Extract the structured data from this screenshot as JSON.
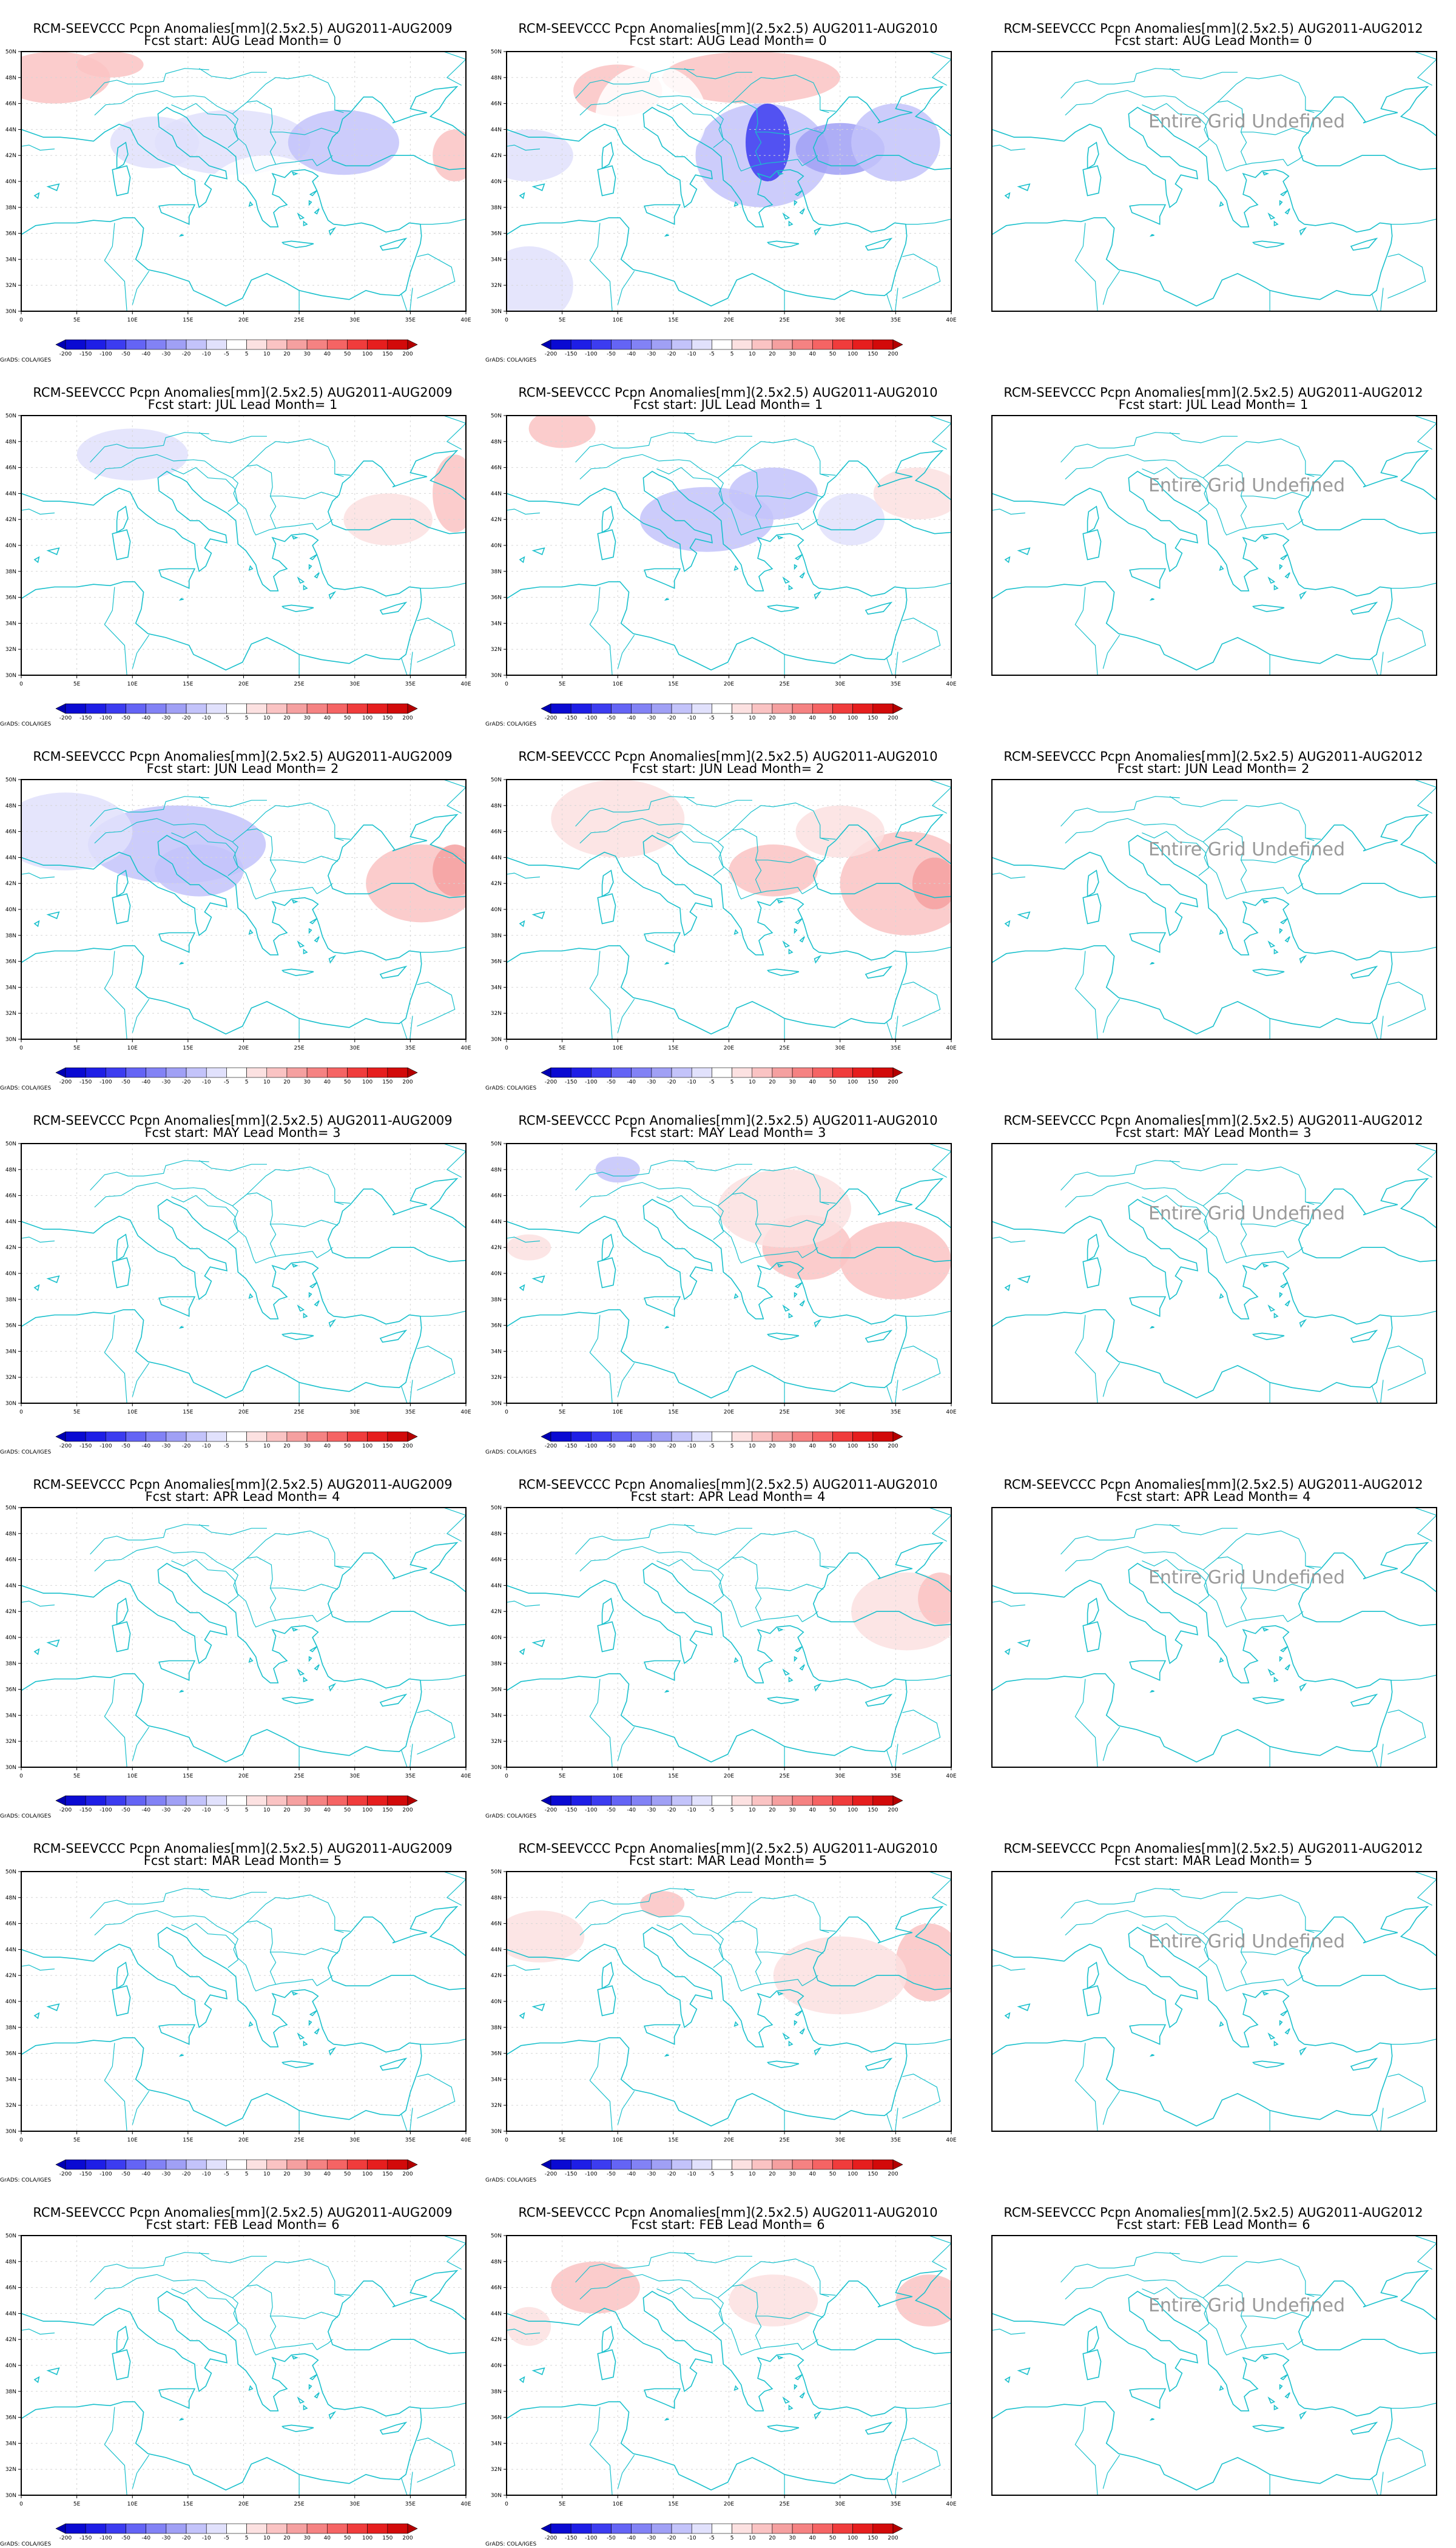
{
  "credit": "GrADS: COLA/IGES",
  "undefined_label": "Entire Grid Undefined",
  "colors": {
    "coast": "#19c0cc",
    "grid": "#d6d6d6",
    "frame": "#000000"
  },
  "axes": {
    "x_ticks": [
      "0",
      "5E",
      "10E",
      "15E",
      "20E",
      "25E",
      "30E",
      "35E",
      "40E"
    ],
    "y_ticks": [
      "30N",
      "32N",
      "34N",
      "36N",
      "38N",
      "40N",
      "42N",
      "44N",
      "46N",
      "48N",
      "50N"
    ],
    "lon_range": [
      0,
      40
    ],
    "lat_range": [
      30,
      50
    ],
    "grid": true
  },
  "colorbar": {
    "labels": [
      "-200",
      "-150",
      "-100",
      "-50",
      "-40",
      "-30",
      "-20",
      "-10",
      "-5",
      "5",
      "10",
      "20",
      "30",
      "40",
      "50",
      "100",
      "150",
      "200"
    ],
    "colors": [
      "#0000b4",
      "#0a0ad2",
      "#1e1ee6",
      "#3c3cf0",
      "#6464f5",
      "#8282f5",
      "#a0a0f5",
      "#c3c3fa",
      "#e1e1fc",
      "#ffffff",
      "#fce1e1",
      "#fac3c3",
      "#f5a0a0",
      "#f58282",
      "#f56464",
      "#f03c3c",
      "#e61e1e",
      "#d20a0a",
      "#b40000"
    ]
  },
  "rows": [
    {
      "lead": "0",
      "panels": [
        {
          "title": "RCM-SEEVCCC Pcpn Anomalies[mm](2.5x2.5) AUG2011-AUG2009",
          "subtitle": "Fcst start: AUG  Lead Month= 0",
          "undefined": false,
          "blobs": [
            [
              3,
              48,
              5,
              2,
              15
            ],
            [
              8,
              49,
              3,
              1,
              10
            ],
            [
              19,
              43,
              7,
              2.5,
              -10
            ],
            [
              29,
              43,
              5,
              2.5,
              -15
            ],
            [
              12,
              43,
              4,
              2,
              -10
            ],
            [
              39,
              42,
              2,
              2,
              10
            ],
            [
              22,
              38,
              6,
              4,
              -4
            ]
          ]
        },
        {
          "title": "RCM-SEEVCCC Pcpn Anomalies[mm](2.5x2.5) AUG2011-AUG2010",
          "subtitle": "Fcst start: AUG  Lead Month= 0",
          "undefined": false,
          "blobs": [
            [
              23,
              42,
              6,
              4,
              -20
            ],
            [
              23.5,
              43,
              2,
              3,
              -60
            ],
            [
              30,
              42.5,
              4,
              2,
              -30
            ],
            [
              35,
              43,
              4,
              3,
              -20
            ],
            [
              10,
              47,
              4,
              2,
              10
            ],
            [
              2,
              42,
              4,
              2,
              -10
            ],
            [
              22,
              48,
              8,
              2,
              15
            ],
            [
              2,
              32,
              4,
              3,
              -10
            ],
            [
              13,
              45,
              5,
              4,
              -5
            ]
          ]
        },
        {
          "title": "RCM-SEEVCCC Pcpn Anomalies[mm](2.5x2.5) AUG2011-AUG2012",
          "subtitle": "Fcst start: AUG  Lead Month= 0",
          "undefined": true,
          "blobs": []
        }
      ]
    },
    {
      "lead": "1",
      "panels": [
        {
          "title": "RCM-SEEVCCC Pcpn Anomalies[mm](2.5x2.5) AUG2011-AUG2009",
          "subtitle": "Fcst start: JUL  Lead Month= 1",
          "undefined": false,
          "blobs": [
            [
              10,
              47,
              5,
              2,
              -8
            ],
            [
              18,
              42,
              5,
              3,
              -5
            ],
            [
              33,
              42,
              4,
              2,
              8
            ],
            [
              39,
              44,
              2,
              3,
              10
            ],
            [
              1,
              49,
              3,
              1,
              -5
            ]
          ]
        },
        {
          "title": "RCM-SEEVCCC Pcpn Anomalies[mm](2.5x2.5) AUG2011-AUG2010",
          "subtitle": "Fcst start: JUL  Lead Month= 1",
          "undefined": false,
          "blobs": [
            [
              18,
              42,
              6,
              2.5,
              -12
            ],
            [
              24,
              44,
              4,
              2,
              -15
            ],
            [
              31,
              42,
              3,
              2,
              -10
            ],
            [
              5,
              49,
              3,
              1.5,
              10
            ],
            [
              37,
              44,
              4,
              2,
              8
            ],
            [
              12,
              36,
              5,
              3,
              -5
            ]
          ]
        },
        {
          "title": "RCM-SEEVCCC Pcpn Anomalies[mm](2.5x2.5) AUG2011-AUG2012",
          "subtitle": "Fcst start: JUL  Lead Month= 1",
          "undefined": true,
          "blobs": []
        }
      ]
    },
    {
      "lead": "2",
      "panels": [
        {
          "title": "RCM-SEEVCCC Pcpn Anomalies[mm](2.5x2.5) AUG2011-AUG2009",
          "subtitle": "Fcst start: JUN  Lead Month= 2",
          "undefined": false,
          "blobs": [
            [
              14,
              45,
              8,
              3,
              -15
            ],
            [
              16,
              43,
              4,
              2,
              -20
            ],
            [
              4,
              46,
              6,
              3,
              -8
            ],
            [
              36,
              42,
              5,
              3,
              15
            ],
            [
              39,
              43,
              2,
              2,
              25
            ]
          ]
        },
        {
          "title": "RCM-SEEVCCC Pcpn Anomalies[mm](2.5x2.5) AUG2011-AUG2010",
          "subtitle": "Fcst start: JUN  Lead Month= 2",
          "undefined": false,
          "blobs": [
            [
              36,
              42,
              6,
              4,
              15
            ],
            [
              38.5,
              42,
              2,
              2,
              25
            ],
            [
              24,
              43,
              4,
              2,
              12
            ],
            [
              10,
              47,
              6,
              3,
              8
            ],
            [
              30,
              46,
              4,
              2,
              5
            ]
          ]
        },
        {
          "title": "RCM-SEEVCCC Pcpn Anomalies[mm](2.5x2.5) AUG2011-AUG2012",
          "subtitle": "Fcst start: JUN  Lead Month= 2",
          "undefined": true,
          "blobs": []
        }
      ]
    },
    {
      "lead": "3",
      "panels": [
        {
          "title": "RCM-SEEVCCC Pcpn Anomalies[mm](2.5x2.5) AUG2011-AUG2009",
          "subtitle": "Fcst start: MAY  Lead Month= 3",
          "undefined": false,
          "blobs": []
        },
        {
          "title": "RCM-SEEVCCC Pcpn Anomalies[mm](2.5x2.5) AUG2011-AUG2010",
          "subtitle": "Fcst start: MAY  Lead Month= 3",
          "undefined": false,
          "blobs": [
            [
              27,
              42,
              4,
              2.5,
              10
            ],
            [
              35,
              41,
              5,
              3,
              12
            ],
            [
              10,
              48,
              2,
              1,
              -15
            ],
            [
              25,
              45,
              6,
              3,
              5
            ],
            [
              2,
              42,
              2,
              1,
              8
            ]
          ]
        },
        {
          "title": "RCM-SEEVCCC Pcpn Anomalies[mm](2.5x2.5) AUG2011-AUG2012",
          "subtitle": "Fcst start: MAY  Lead Month= 3",
          "undefined": true,
          "blobs": []
        }
      ]
    },
    {
      "lead": "4",
      "panels": [
        {
          "title": "RCM-SEEVCCC Pcpn Anomalies[mm](2.5x2.5) AUG2011-AUG2009",
          "subtitle": "Fcst start: APR  Lead Month= 4",
          "undefined": false,
          "blobs": []
        },
        {
          "title": "RCM-SEEVCCC Pcpn Anomalies[mm](2.5x2.5) AUG2011-AUG2010",
          "subtitle": "Fcst start: APR  Lead Month= 4",
          "undefined": false,
          "blobs": [
            [
              36,
              42,
              5,
              3,
              8
            ],
            [
              39,
              43,
              2,
              2,
              12
            ],
            [
              16,
              44,
              4,
              2,
              -5
            ],
            [
              2,
              41,
              2,
              1.5,
              -5
            ]
          ]
        },
        {
          "title": "RCM-SEEVCCC Pcpn Anomalies[mm](2.5x2.5) AUG2011-AUG2012",
          "subtitle": "Fcst start: APR  Lead Month= 4",
          "undefined": true,
          "blobs": []
        }
      ]
    },
    {
      "lead": "5",
      "panels": [
        {
          "title": "RCM-SEEVCCC Pcpn Anomalies[mm](2.5x2.5) AUG2011-AUG2009",
          "subtitle": "Fcst start: MAR  Lead Month= 5",
          "undefined": false,
          "blobs": []
        },
        {
          "title": "RCM-SEEVCCC Pcpn Anomalies[mm](2.5x2.5) AUG2011-AUG2010",
          "subtitle": "Fcst start: MAR  Lead Month= 5",
          "undefined": false,
          "blobs": [
            [
              38,
              43,
              3,
              3,
              12
            ],
            [
              14,
              47.5,
              2,
              1,
              10
            ],
            [
              30,
              42,
              6,
              3,
              6
            ],
            [
              3,
              45,
              4,
              2,
              5
            ]
          ]
        },
        {
          "title": "RCM-SEEVCCC Pcpn Anomalies[mm](2.5x2.5) AUG2011-AUG2012",
          "subtitle": "Fcst start: MAR  Lead Month= 5",
          "undefined": true,
          "blobs": []
        }
      ]
    },
    {
      "lead": "6",
      "panels": [
        {
          "title": "RCM-SEEVCCC Pcpn Anomalies[mm](2.5x2.5) AUG2011-AUG2009",
          "subtitle": "Fcst start: FEB  Lead Month= 6",
          "undefined": false,
          "blobs": []
        },
        {
          "title": "RCM-SEEVCCC Pcpn Anomalies[mm](2.5x2.5) AUG2011-AUG2010",
          "subtitle": "Fcst start: FEB  Lead Month= 6",
          "undefined": false,
          "blobs": [
            [
              8,
              46,
              4,
              2,
              12
            ],
            [
              38,
              45,
              3,
              2,
              10
            ],
            [
              24,
              45,
              4,
              2,
              5
            ],
            [
              2,
              43,
              2,
              1.5,
              5
            ]
          ]
        },
        {
          "title": "RCM-SEEVCCC Pcpn Anomalies[mm](2.5x2.5) AUG2011-AUG2012",
          "subtitle": "Fcst start: FEB  Lead Month= 6",
          "undefined": true,
          "blobs": []
        }
      ]
    }
  ]
}
